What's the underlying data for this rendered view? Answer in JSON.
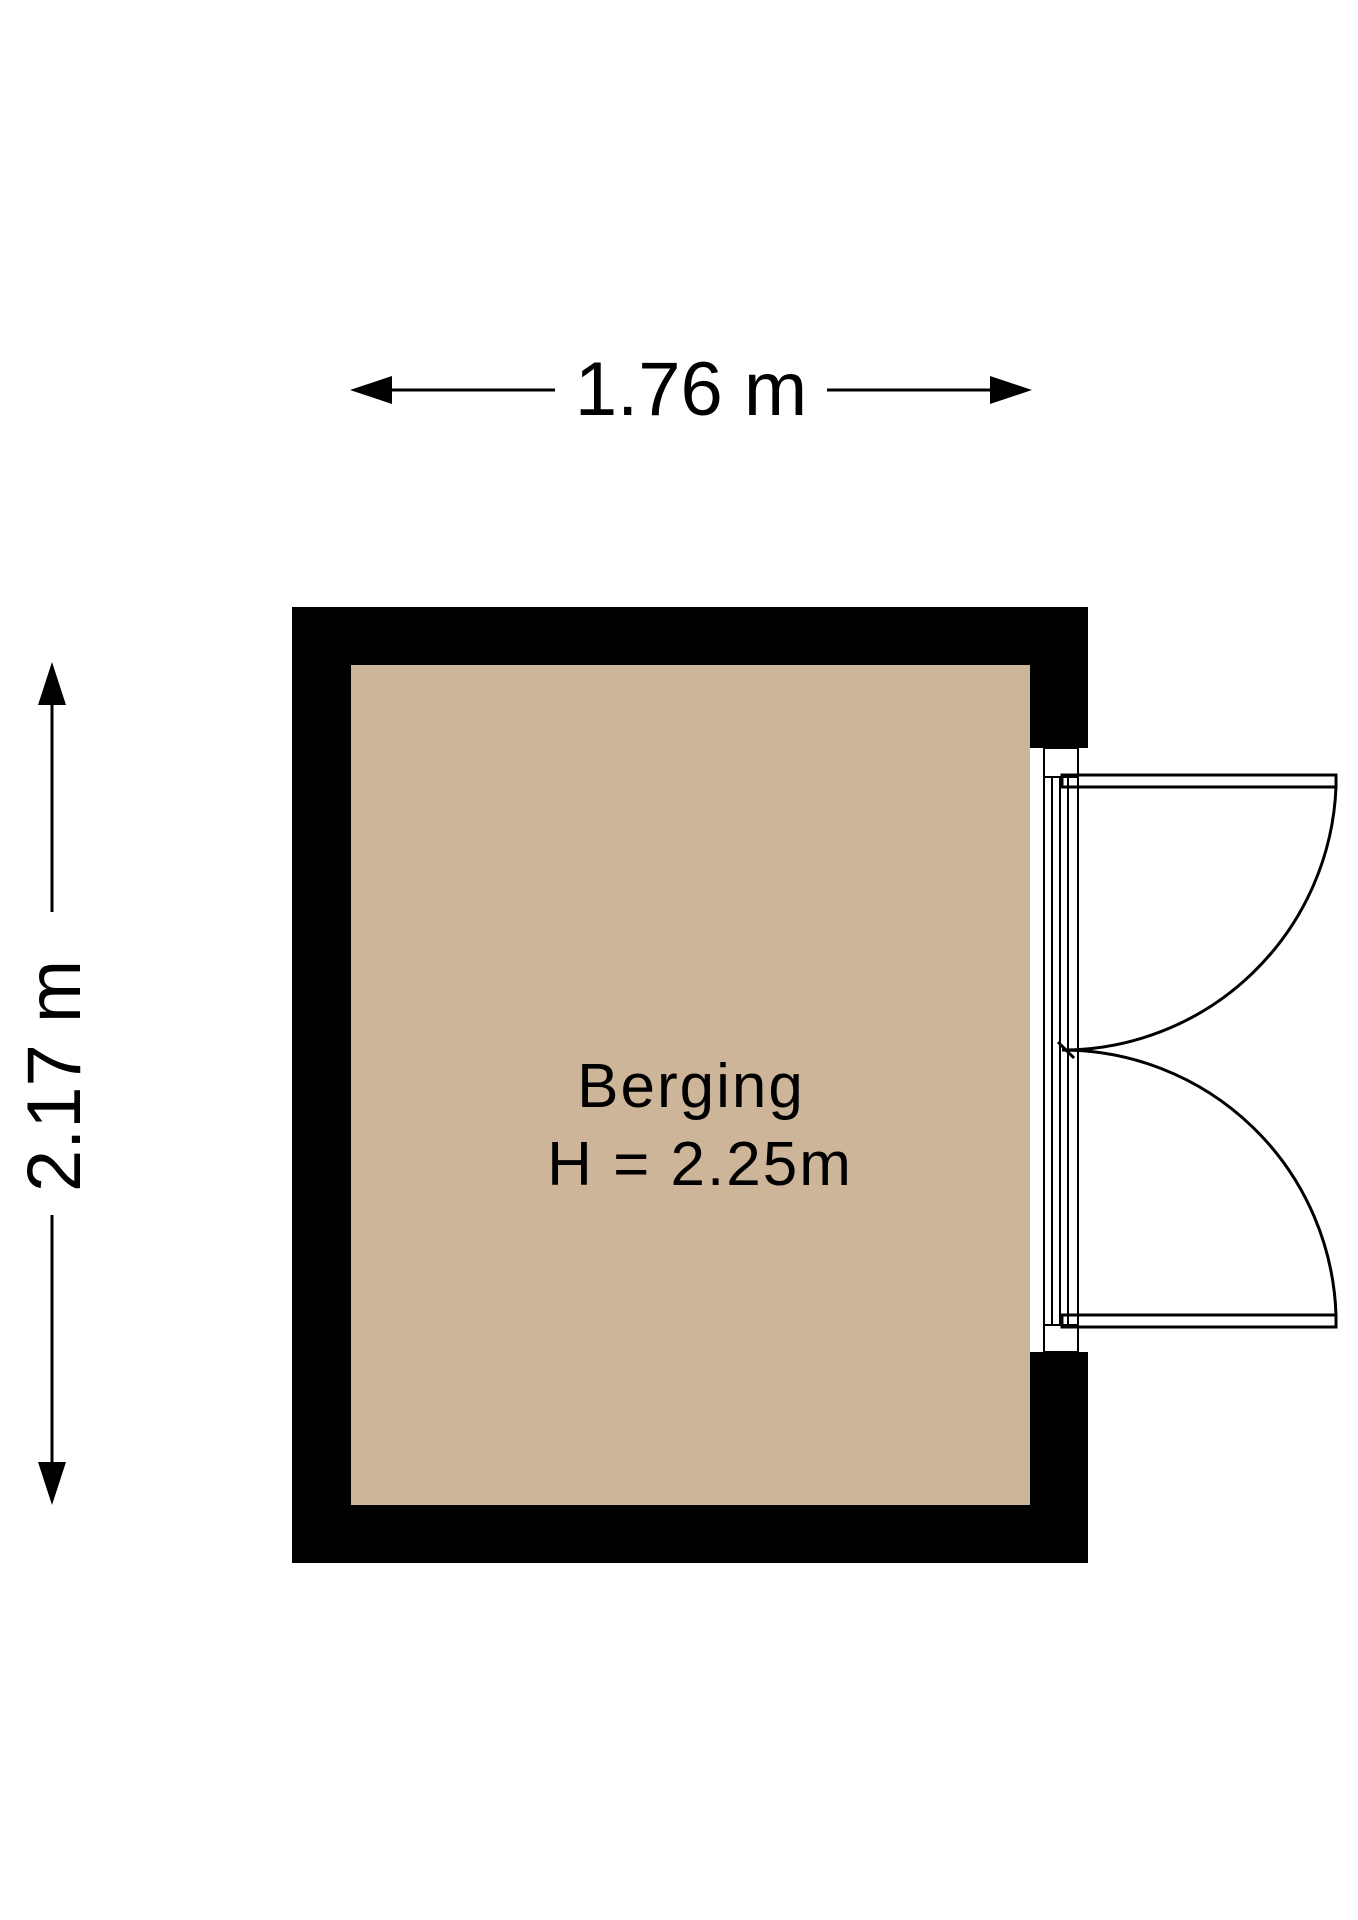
{
  "dimensions": {
    "width_label": "1.76 m",
    "height_label": "2.17 m"
  },
  "room": {
    "name": "Berging",
    "height_label": "H = 2.25m"
  },
  "colors": {
    "wall": "#000000",
    "floor": "#ccb598",
    "background": "#ffffff"
  }
}
